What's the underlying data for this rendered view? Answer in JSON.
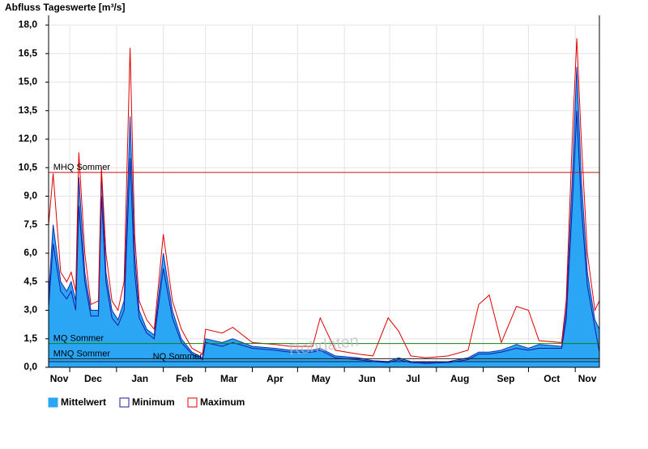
{
  "chart_data": {
    "type": "area",
    "title": "Abfluss Tageswerte [m³/s]",
    "watermark": "Rohdaten",
    "x": [
      0,
      3,
      8,
      12,
      15,
      18,
      20,
      24,
      28,
      33,
      35,
      38,
      42,
      46,
      50,
      54,
      57,
      60,
      65,
      70,
      76,
      82,
      88,
      95,
      102,
      104,
      115,
      122,
      135,
      150,
      160,
      175,
      180,
      190,
      205,
      215,
      225,
      232,
      240,
      250,
      265,
      278,
      285,
      292,
      300,
      310,
      318,
      325,
      340,
      343,
      347,
      350,
      353,
      357,
      362,
      365
    ],
    "xlim": [
      0,
      365
    ],
    "xticks": [
      {
        "value": 7,
        "label": "Nov"
      },
      {
        "value": 29.5,
        "label": "Dec"
      },
      {
        "value": 60.5,
        "label": "Jan"
      },
      {
        "value": 90,
        "label": "Feb"
      },
      {
        "value": 119.5,
        "label": "Mar"
      },
      {
        "value": 150,
        "label": "Apr"
      },
      {
        "value": 180.5,
        "label": "May"
      },
      {
        "value": 211,
        "label": "Jun"
      },
      {
        "value": 241.5,
        "label": "Jul"
      },
      {
        "value": 272.5,
        "label": "Aug"
      },
      {
        "value": 303,
        "label": "Sep"
      },
      {
        "value": 333.5,
        "label": "Oct"
      },
      {
        "value": 357,
        "label": "Nov"
      }
    ],
    "x_grid": [
      14,
      45,
      76,
      104,
      135,
      165,
      196,
      226,
      257,
      288,
      318,
      349
    ],
    "ylim": [
      0,
      18
    ],
    "yticks": [
      {
        "value": 0,
        "label": "0,0"
      },
      {
        "value": 1.5,
        "label": "1,5"
      },
      {
        "value": 3,
        "label": "3,0"
      },
      {
        "value": 4.5,
        "label": "4,5"
      },
      {
        "value": 6,
        "label": "6,0"
      },
      {
        "value": 7.5,
        "label": "7,5"
      },
      {
        "value": 9,
        "label": "9,0"
      },
      {
        "value": 10.5,
        "label": "10,5"
      },
      {
        "value": 12,
        "label": "12,0"
      },
      {
        "value": 13.5,
        "label": "13,5"
      },
      {
        "value": 15,
        "label": "15,0"
      },
      {
        "value": 16.5,
        "label": "16,5"
      },
      {
        "value": 18,
        "label": "18,0"
      }
    ],
    "grid": true,
    "series": [
      {
        "name": "Mittelwert",
        "color": "#2aa6f5",
        "values": [
          3.8,
          7.5,
          4.5,
          4.0,
          4.5,
          3.5,
          10.0,
          5.0,
          3.0,
          3.0,
          10.3,
          5.0,
          3.0,
          2.5,
          3.5,
          13.2,
          6.0,
          3.0,
          2.0,
          1.7,
          6.0,
          3.0,
          1.5,
          0.8,
          0.5,
          1.5,
          1.3,
          1.5,
          1.1,
          1.0,
          0.9,
          0.9,
          1.0,
          0.6,
          0.5,
          0.35,
          0.3,
          0.5,
          0.3,
          0.25,
          0.3,
          0.5,
          0.8,
          0.8,
          0.9,
          1.2,
          1.0,
          1.2,
          1.1,
          3.0,
          10.0,
          15.8,
          10.0,
          5.0,
          2.5,
          2.0
        ]
      },
      {
        "name": "Minimum",
        "color": "#1a1aa0",
        "values": [
          3.2,
          6.5,
          4.0,
          3.6,
          4.0,
          3.0,
          8.5,
          4.5,
          2.7,
          2.7,
          9.0,
          4.5,
          2.6,
          2.2,
          3.0,
          11.0,
          5.0,
          2.6,
          1.8,
          1.5,
          5.2,
          2.6,
          1.3,
          0.7,
          0.4,
          1.3,
          1.1,
          1.3,
          1.0,
          0.9,
          0.8,
          0.8,
          0.9,
          0.5,
          0.4,
          0.3,
          0.25,
          0.4,
          0.25,
          0.2,
          0.25,
          0.4,
          0.7,
          0.7,
          0.8,
          1.0,
          0.9,
          1.0,
          1.0,
          2.5,
          8.5,
          13.5,
          8.5,
          4.3,
          2.1,
          0.8
        ]
      },
      {
        "name": "Maximum",
        "color": "#e00000",
        "values": [
          7.5,
          10.2,
          5.0,
          4.5,
          5.0,
          4.0,
          11.3,
          6.0,
          3.3,
          3.5,
          10.5,
          6.0,
          3.5,
          3.0,
          4.5,
          16.8,
          7.0,
          3.5,
          2.5,
          2.0,
          7.0,
          3.5,
          2.0,
          1.0,
          0.7,
          2.0,
          1.8,
          2.1,
          1.3,
          1.2,
          1.1,
          1.1,
          2.6,
          0.9,
          0.7,
          0.6,
          2.6,
          1.9,
          0.6,
          0.5,
          0.6,
          0.9,
          3.3,
          3.8,
          1.3,
          3.2,
          3.0,
          1.4,
          1.3,
          3.5,
          12.0,
          17.3,
          12.0,
          6.0,
          3.0,
          3.5
        ]
      }
    ],
    "reference_lines": [
      {
        "label": "MHQ Sommer",
        "value": 10.25,
        "color": "#d01010",
        "label_x": 2
      },
      {
        "label": "MQ Sommer",
        "value": 1.25,
        "color": "#108010",
        "label_x": 2
      },
      {
        "label": "MNQ Sommer",
        "value": 0.45,
        "color": "#202020",
        "label_x": 2
      },
      {
        "label": "NQ Sommer",
        "value": 0.3,
        "color": "#102040",
        "label_x": 68
      }
    ]
  }
}
